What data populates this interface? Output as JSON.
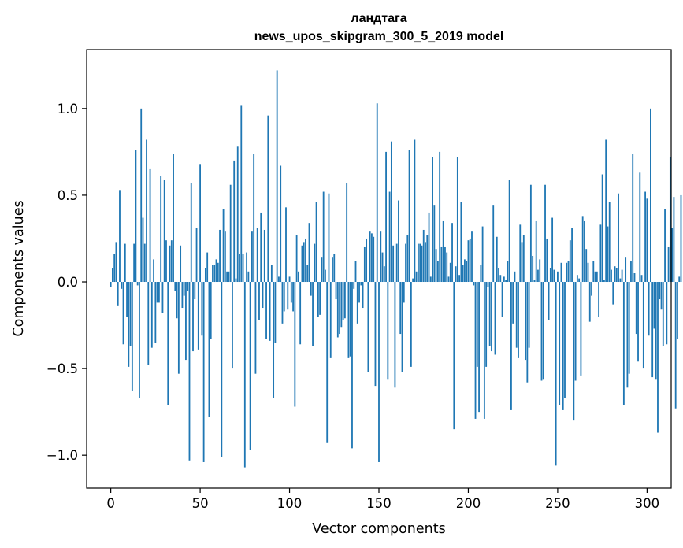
{
  "chart_data": {
    "type": "bar",
    "title": "ландтага",
    "subtitle": "news_upos_skipgram_300_5_2019 model",
    "xlabel": "Vector components",
    "ylabel": "Components values",
    "xlim": [
      -13.5,
      313.5
    ],
    "ylim": [
      -1.19,
      1.34
    ],
    "x_ticks": [
      0,
      50,
      100,
      150,
      200,
      250,
      300
    ],
    "x_tick_labels": [
      "0",
      "50",
      "100",
      "150",
      "200",
      "250",
      "300"
    ],
    "y_ticks": [
      -1.0,
      -0.5,
      0.0,
      0.5,
      1.0
    ],
    "y_tick_labels": [
      "−1.0",
      "−0.5",
      "0.0",
      "0.5",
      "1.0"
    ],
    "grid": false,
    "legend": "none",
    "bar_color": "#1f77b4",
    "values": [
      -0.03,
      0.08,
      0.16,
      0.23,
      -0.14,
      0.53,
      -0.04,
      -0.36,
      0.22,
      -0.2,
      -0.49,
      -0.37,
      -0.63,
      0.22,
      0.76,
      -0.02,
      -0.67,
      1.0,
      0.37,
      0.22,
      0.82,
      -0.48,
      0.65,
      -0.38,
      0.13,
      -0.35,
      -0.12,
      -0.12,
      0.61,
      -0.18,
      0.59,
      0.24,
      -0.71,
      0.21,
      0.24,
      0.74,
      -0.05,
      -0.21,
      -0.53,
      0.21,
      -0.15,
      -0.08,
      -0.45,
      -0.05,
      -1.03,
      0.57,
      -0.4,
      -0.1,
      0.31,
      -0.39,
      0.68,
      -0.31,
      -1.04,
      0.08,
      0.17,
      -0.78,
      -0.33,
      0.1,
      0.1,
      0.13,
      0.11,
      0.3,
      -1.01,
      0.42,
      0.29,
      0.06,
      0.06,
      0.56,
      -0.5,
      0.7,
      0.02,
      0.78,
      0.16,
      1.02,
      0.16,
      -1.07,
      0.17,
      0.06,
      -0.97,
      0.29,
      0.74,
      -0.53,
      0.31,
      -0.22,
      0.4,
      -0.15,
      0.3,
      -0.33,
      0.96,
      -0.34,
      0.1,
      -0.67,
      -0.35,
      1.22,
      0.03,
      0.67,
      -0.24,
      -0.17,
      0.43,
      -0.16,
      0.03,
      -0.12,
      -0.17,
      -0.72,
      0.27,
      0.06,
      -0.36,
      0.21,
      0.23,
      0.25,
      0.1,
      0.34,
      -0.08,
      -0.37,
      0.22,
      0.46,
      -0.2,
      -0.19,
      0.14,
      0.52,
      0.07,
      -0.93,
      0.51,
      -0.44,
      0.14,
      0.16,
      -0.1,
      -0.32,
      -0.3,
      -0.26,
      -0.22,
      -0.21,
      0.57,
      -0.44,
      -0.43,
      -0.96,
      -0.04,
      0.12,
      -0.24,
      -0.12,
      -0.02,
      -0.15,
      0.2,
      0.25,
      -0.52,
      0.29,
      0.28,
      0.26,
      -0.6,
      1.03,
      -1.04,
      0.29,
      0.17,
      0.09,
      0.75,
      -0.56,
      0.52,
      0.81,
      0.21,
      -0.61,
      0.22,
      0.47,
      -0.3,
      -0.52,
      -0.12,
      0.22,
      0.27,
      0.76,
      -0.49,
      0.02,
      0.82,
      0.06,
      0.22,
      0.22,
      0.21,
      0.3,
      0.23,
      0.27,
      0.4,
      0.03,
      0.72,
      0.44,
      0.19,
      0.12,
      0.75,
      0.2,
      0.35,
      0.2,
      0.17,
      0.03,
      0.11,
      0.34,
      -0.85,
      0.09,
      0.72,
      0.04,
      0.46,
      0.1,
      0.13,
      0.12,
      0.24,
      0.25,
      0.29,
      -0.02,
      -0.79,
      -0.49,
      -0.75,
      0.1,
      0.32,
      -0.79,
      -0.49,
      -0.03,
      -0.37,
      -0.4,
      0.44,
      -0.42,
      0.26,
      0.08,
      0.04,
      -0.2,
      0.03,
      0.01,
      0.12,
      0.59,
      -0.74,
      -0.24,
      0.06,
      -0.38,
      -0.44,
      0.33,
      0.23,
      0.27,
      -0.45,
      -0.58,
      -0.38,
      0.56,
      0.15,
      0.01,
      0.35,
      0.07,
      0.13,
      -0.57,
      -0.56,
      0.56,
      0.25,
      -0.22,
      0.08,
      0.37,
      0.07,
      -1.06,
      0.06,
      -0.71,
      0.11,
      -0.74,
      -0.67,
      0.11,
      0.12,
      0.24,
      0.31,
      -0.8,
      -0.57,
      0.04,
      0.02,
      -0.54,
      0.38,
      0.35,
      0.19,
      0.11,
      -0.23,
      -0.08,
      0.12,
      0.06,
      0.06,
      -0.2,
      0.33,
      0.62,
      0.01,
      0.82,
      0.32,
      0.46,
      0.07,
      -0.13,
      0.09,
      0.08,
      0.51,
      0.02,
      0.07,
      -0.71,
      0.14,
      -0.61,
      -0.53,
      0.12,
      0.74,
      0.05,
      -0.3,
      -0.46,
      0.63,
      0.04,
      -0.5,
      0.52,
      0.48,
      -0.31,
      1.0,
      -0.55,
      -0.27,
      -0.56,
      -0.87,
      -0.1,
      -0.16,
      -0.37,
      0.42,
      -0.36,
      0.2,
      0.72,
      0.31,
      0.49,
      -0.73,
      -0.33,
      0.03,
      0.5
    ]
  }
}
